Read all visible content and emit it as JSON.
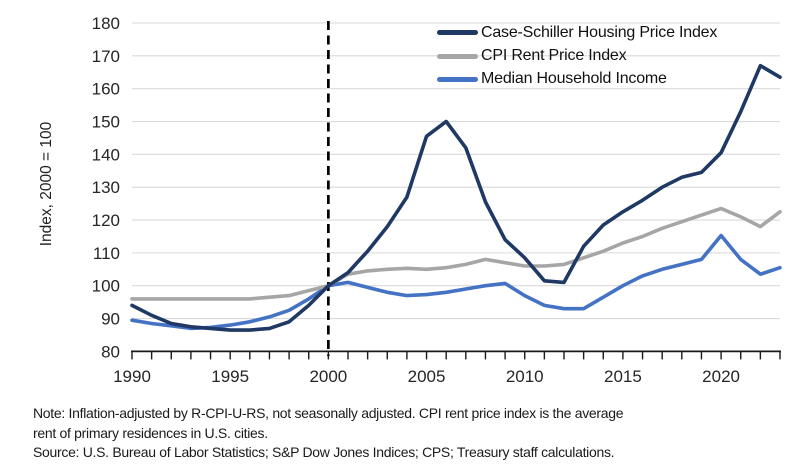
{
  "figure": {
    "y_axis_title": "Index, 2000 = 100",
    "notes": {
      "note_line_1": "Note: Inflation-adjusted by R-CPI-U-RS, not seasonally adjusted. CPI rent price index is the average",
      "note_line_2": "rent of primary residences in U.S. cities.",
      "source_line": "Source: U.S. Bureau of Labor Statistics; S&P Dow Jones Indices; CPS; Treasury staff calculations."
    }
  },
  "chart_data": {
    "type": "line",
    "title": "",
    "xlabel": "",
    "ylabel": "Index, 2000 = 100",
    "ylim": [
      80,
      180
    ],
    "ytick_step": 10,
    "xlim": [
      1990,
      2023
    ],
    "xticks_labeled": [
      1990,
      1995,
      2000,
      2005,
      2010,
      2015,
      2020
    ],
    "x_minor_tick_every_years": 1,
    "grid": "horizontal",
    "gridline_color": "#d9d9d9",
    "axis_color": "#1a1a1a",
    "reference_line": {
      "x": 2000,
      "style": "dashed",
      "color": "#000000"
    },
    "legend_position": "top-right",
    "x": [
      1990,
      1991,
      1992,
      1993,
      1994,
      1995,
      1996,
      1997,
      1998,
      1999,
      2000,
      2001,
      2002,
      2003,
      2004,
      2005,
      2006,
      2007,
      2008,
      2009,
      2010,
      2011,
      2012,
      2013,
      2014,
      2015,
      2016,
      2017,
      2018,
      2019,
      2020,
      2021,
      2022,
      2023
    ],
    "series": [
      {
        "name": "Case-Schiller Housing Price Index",
        "color": "#1f3864",
        "values": [
          94,
          91,
          88.5,
          87.5,
          87,
          86.5,
          86.5,
          87,
          89,
          94,
          100,
          104,
          110.5,
          118,
          127,
          145.5,
          150,
          142,
          125.5,
          114,
          108.5,
          101.5,
          101,
          112,
          118.5,
          122.5,
          126,
          130,
          133,
          134.5,
          140.5,
          153,
          167,
          163.5
        ]
      },
      {
        "name": "CPI Rent Price Index",
        "color": "#a6a6a6",
        "values": [
          96,
          96,
          96,
          96,
          96,
          96,
          96,
          96.5,
          97,
          98.5,
          100,
          103.5,
          104.5,
          105,
          105.3,
          105,
          105.5,
          106.5,
          108,
          107,
          106,
          106,
          106.5,
          108.5,
          110.5,
          113,
          115,
          117.5,
          119.5,
          121.5,
          123.5,
          121,
          118,
          122.5
        ]
      },
      {
        "name": "Median Household Income",
        "color": "#4472c4",
        "values": [
          89.5,
          88.5,
          87.8,
          87,
          87.3,
          88,
          89,
          90.5,
          92.5,
          96,
          100,
          101,
          99.5,
          98,
          97,
          97.3,
          98,
          99,
          100,
          100.7,
          97,
          94,
          93,
          93,
          96.5,
          100,
          103,
          105,
          106.5,
          108,
          115.3,
          108,
          103.5,
          105.5
        ]
      }
    ]
  }
}
